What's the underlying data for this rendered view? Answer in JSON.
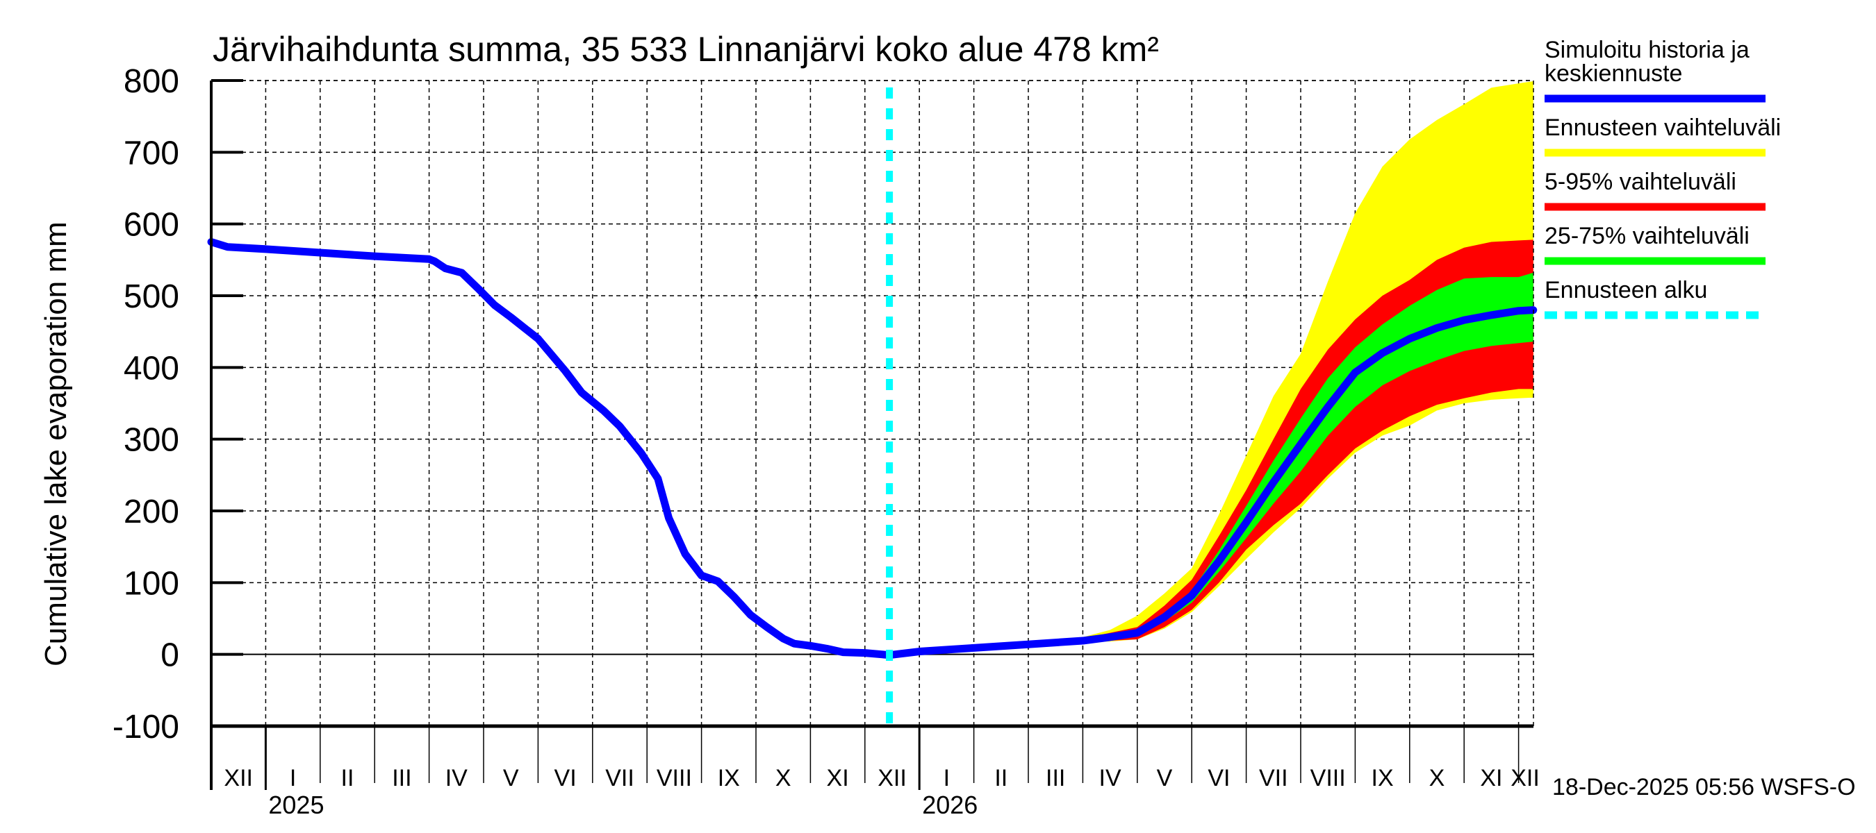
{
  "chart_data": {
    "type": "area",
    "title": "Järvihaihdunta summa, 35 533 Linnanjärvi koko alue 478 km²",
    "xlabel": "",
    "ylabel": "Cumulative lake evaporation   mm",
    "x_units": "months since 1 Dec 2024",
    "xlim": [
      0,
      24.27
    ],
    "ylim": [
      -100,
      800
    ],
    "yticks": [
      -100,
      0,
      100,
      200,
      300,
      400,
      500,
      600,
      700,
      800
    ],
    "grid": true,
    "legend_position": "right",
    "month_labels": [
      "XII",
      "I",
      "II",
      "III",
      "IV",
      "V",
      "VI",
      "VII",
      "VIII",
      "IX",
      "X",
      "XI",
      "XII",
      "I",
      "II",
      "III",
      "IV",
      "V",
      "VI",
      "VII",
      "VIII",
      "IX",
      "X",
      "XI",
      "XII"
    ],
    "year_labels": [
      {
        "label": "2025",
        "month_index": 1
      },
      {
        "label": "2026",
        "month_index": 13
      }
    ],
    "forecast_start": 12.45,
    "history": {
      "name": "Simuloitu historia ja keskiennuste",
      "x": [
        0,
        0.3,
        1,
        2,
        3,
        4,
        4.1,
        4.3,
        4.6,
        4.9,
        5.2,
        5.5,
        6,
        6.5,
        6.8,
        7.2,
        7.5,
        7.9,
        8.2,
        8.4,
        8.7,
        9,
        9.3,
        9.6,
        9.9,
        10.2,
        10.5,
        10.7,
        11,
        11.3,
        11.6,
        12,
        12.45
      ],
      "y": [
        575,
        568,
        565,
        560,
        555,
        551,
        548,
        538,
        532,
        510,
        487,
        470,
        440,
        395,
        365,
        340,
        318,
        280,
        245,
        190,
        140,
        110,
        102,
        80,
        55,
        38,
        22,
        15,
        12,
        8,
        3,
        2,
        -1
      ]
    },
    "forecast": {
      "x": [
        12.45,
        13,
        14,
        15,
        16,
        16.5,
        17,
        17.5,
        18,
        18.5,
        19,
        19.5,
        20,
        20.5,
        21,
        21.5,
        22,
        22.5,
        23,
        23.5,
        24,
        24.27
      ],
      "median": [
        -1,
        4,
        9,
        14,
        19,
        24,
        30,
        52,
        82,
        130,
        184,
        240,
        293,
        345,
        393,
        420,
        440,
        455,
        466,
        473,
        479,
        480
      ],
      "p25": [
        -1,
        4,
        9,
        14,
        18,
        22,
        27,
        46,
        72,
        115,
        162,
        210,
        255,
        305,
        345,
        375,
        395,
        410,
        423,
        430,
        434,
        436
      ],
      "p75": [
        -1,
        4,
        9,
        14,
        20,
        26,
        33,
        58,
        88,
        145,
        207,
        270,
        329,
        385,
        428,
        460,
        486,
        508,
        524,
        526,
        526,
        532
      ],
      "p5": [
        -1,
        4,
        9,
        14,
        17,
        19,
        21,
        38,
        62,
        100,
        146,
        180,
        210,
        250,
        287,
        312,
        332,
        348,
        357,
        365,
        370,
        370
      ],
      "p95": [
        -1,
        4,
        9,
        14,
        22,
        30,
        38,
        68,
        104,
        165,
        229,
        300,
        370,
        425,
        467,
        500,
        522,
        550,
        567,
        575,
        577,
        578
      ],
      "min": [
        -1,
        4,
        9,
        14,
        17,
        18,
        21,
        36,
        59,
        95,
        133,
        170,
        204,
        245,
        281,
        305,
        319,
        340,
        350,
        355,
        357,
        358
      ],
      "max": [
        -1,
        4,
        9,
        14,
        24,
        34,
        54,
        85,
        120,
        195,
        277,
        360,
        419,
        520,
        615,
        680,
        718,
        745,
        767,
        790,
        796,
        799
      ]
    },
    "series": [
      {
        "name": "Simuloitu historia ja keskiennuste",
        "color": "#0000ff",
        "style": "line"
      },
      {
        "name": "Ennusteen vaihteluväli",
        "color": "#ffff00",
        "style": "band"
      },
      {
        "name": "5-95% vaihteluväli",
        "color": "#ff0000",
        "style": "band"
      },
      {
        "name": "25-75% vaihteluväli",
        "color": "#00ff00",
        "style": "band"
      },
      {
        "name": "Ennusteen alku",
        "color": "#00ffff",
        "style": "dashed-vertical"
      }
    ]
  },
  "legend": {
    "items": [
      {
        "label_lines": [
          "Simuloitu historia ja",
          "keskiennuste"
        ],
        "color": "#0000ff",
        "dashed": false
      },
      {
        "label_lines": [
          "Ennusteen vaihteluväli"
        ],
        "color": "#ffff00",
        "dashed": false
      },
      {
        "label_lines": [
          "5-95% vaihteluväli"
        ],
        "color": "#ff0000",
        "dashed": false
      },
      {
        "label_lines": [
          "25-75% vaihteluväli"
        ],
        "color": "#00ff00",
        "dashed": false
      },
      {
        "label_lines": [
          "Ennusteen alku"
        ],
        "color": "#00ffff",
        "dashed": true
      }
    ]
  },
  "footer": {
    "timestamp": "18-Dec-2025 05:56 WSFS-O"
  }
}
